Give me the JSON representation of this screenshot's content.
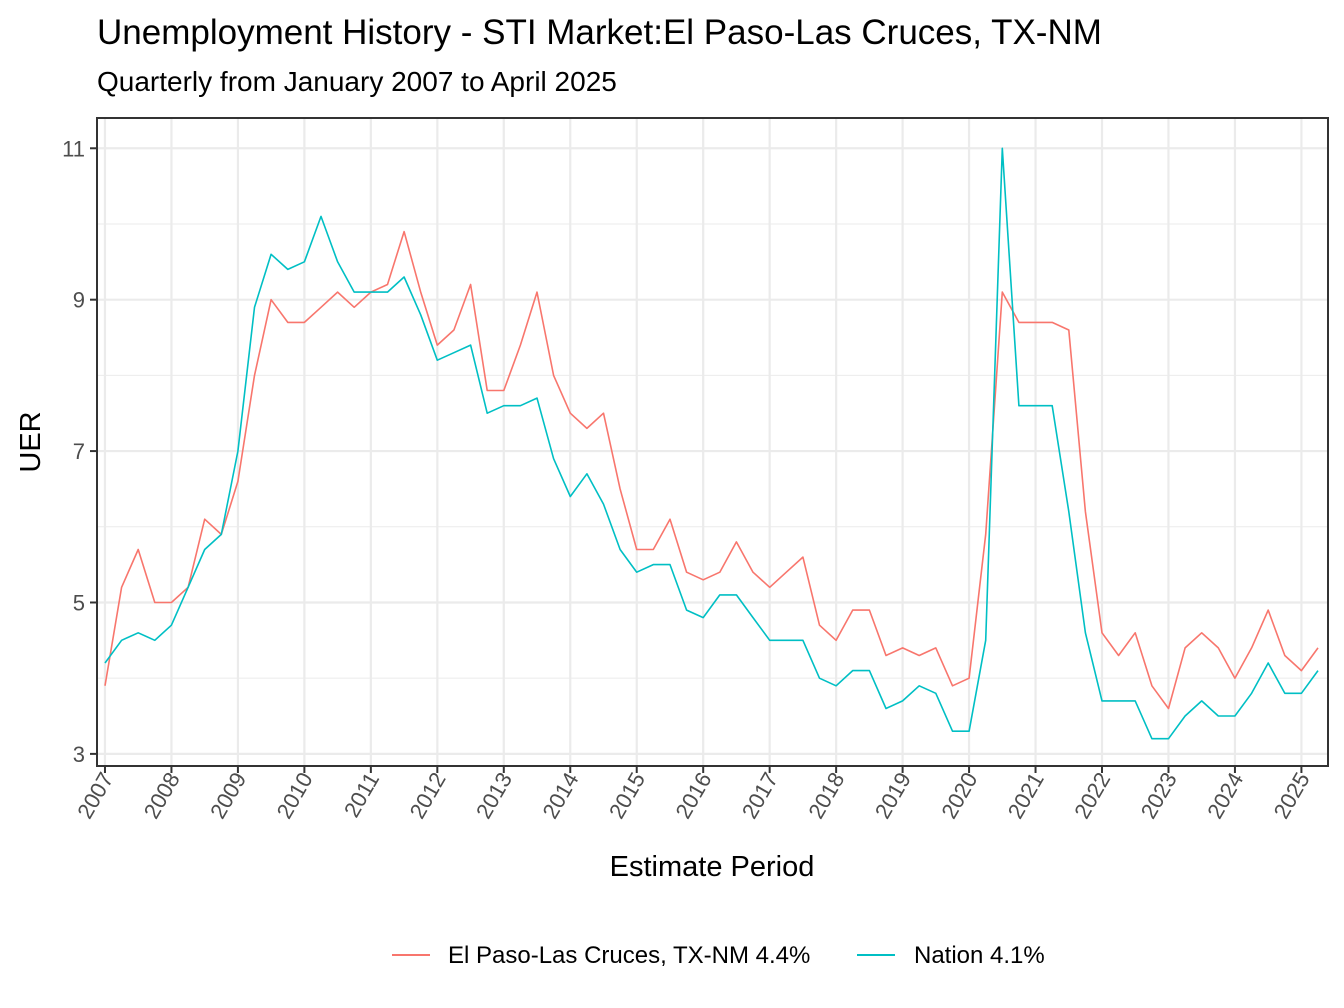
{
  "chart_data": {
    "type": "line",
    "title": "Unemployment History - STI Market:El Paso-Las Cruces, TX-NM",
    "subtitle": "Quarterly from January 2007 to April 2025",
    "xlabel": "Estimate Period",
    "ylabel": "UER",
    "xlim": [
      2006.88,
      2025.4
    ],
    "ylim": [
      2.84,
      11.4
    ],
    "x_start": 2007,
    "x_step": 0.25,
    "x_ticks": [
      "2007",
      "2008",
      "2009",
      "2010",
      "2011",
      "2012",
      "2013",
      "2014",
      "2015",
      "2016",
      "2017",
      "2018",
      "2019",
      "2020",
      "2021",
      "2022",
      "2023",
      "2024",
      "2025"
    ],
    "y_ticks": [
      "3",
      "5",
      "7",
      "9",
      "11"
    ],
    "grid": true,
    "legend_position": "bottom",
    "series": [
      {
        "name": "El Paso-Las Cruces, TX-NM 4.4%",
        "color": "#F8766D",
        "values": [
          3.9,
          5.2,
          5.7,
          5.0,
          5.0,
          5.2,
          6.1,
          5.9,
          6.6,
          8.0,
          9.0,
          8.7,
          8.7,
          8.9,
          9.1,
          8.9,
          9.1,
          9.2,
          9.9,
          9.1,
          8.4,
          8.6,
          9.2,
          7.8,
          7.8,
          8.4,
          9.1,
          8.0,
          7.5,
          7.3,
          7.5,
          6.5,
          5.7,
          5.7,
          6.1,
          5.4,
          5.3,
          5.4,
          5.8,
          5.4,
          5.2,
          5.4,
          5.6,
          4.7,
          4.5,
          4.9,
          4.9,
          4.3,
          4.4,
          4.3,
          4.4,
          3.9,
          4.0,
          5.9,
          9.1,
          8.7,
          8.7,
          8.7,
          8.6,
          6.2,
          4.6,
          4.3,
          4.6,
          3.9,
          3.6,
          4.4,
          4.6,
          4.4,
          4.0,
          4.4,
          4.9,
          4.3,
          4.1,
          4.4
        ]
      },
      {
        "name": "Nation 4.1%",
        "color": "#00BFC4",
        "values": [
          4.2,
          4.5,
          4.6,
          4.5,
          4.7,
          5.2,
          5.7,
          5.9,
          7.0,
          8.9,
          9.6,
          9.4,
          9.5,
          10.1,
          9.5,
          9.1,
          9.1,
          9.1,
          9.3,
          8.8,
          8.2,
          8.3,
          8.4,
          7.5,
          7.6,
          7.6,
          7.7,
          6.9,
          6.4,
          6.7,
          6.3,
          5.7,
          5.4,
          5.5,
          5.5,
          4.9,
          4.8,
          5.1,
          5.1,
          4.8,
          4.5,
          4.5,
          4.5,
          4.0,
          3.9,
          4.1,
          4.1,
          3.6,
          3.7,
          3.9,
          3.8,
          3.3,
          3.3,
          4.5,
          11.0,
          7.6,
          7.6,
          7.6,
          6.2,
          4.6,
          3.7,
          3.7,
          3.7,
          3.2,
          3.2,
          3.5,
          3.7,
          3.5,
          3.5,
          3.8,
          4.2,
          3.8,
          3.8,
          4.1
        ]
      }
    ]
  }
}
